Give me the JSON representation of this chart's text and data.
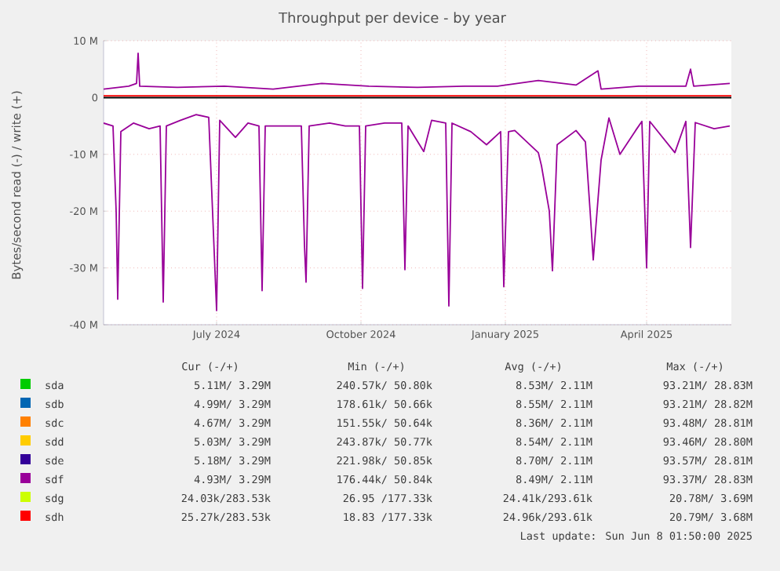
{
  "chart_data": {
    "type": "line",
    "title": "Throughput per device - by year",
    "ylabel": "Bytes/second read (-) / write (+)",
    "xlim": [
      "2024-05-04",
      "2025-06-08"
    ],
    "xticks": [
      {
        "value": "2024-07-15",
        "label": "July 2024"
      },
      {
        "value": "2024-10-15",
        "label": "October 2024"
      },
      {
        "value": "2025-01-15",
        "label": "January 2025"
      },
      {
        "value": "2025-04-15",
        "label": "April 2025"
      }
    ],
    "ylim": [
      -40,
      10
    ],
    "yticks": [
      {
        "value": -40,
        "label": "-40 M"
      },
      {
        "value": -30,
        "label": "-30 M"
      },
      {
        "value": -20,
        "label": "-20 M"
      },
      {
        "value": -10,
        "label": "-10 M"
      },
      0,
      {
        "value": 10,
        "label": "10 M"
      }
    ],
    "grid": true,
    "legend": "bottom",
    "ref_lines": [
      {
        "axis": "y",
        "value": 0,
        "color": "#000000"
      }
    ],
    "series": [
      {
        "name": "sda",
        "color": "#00cc00"
      },
      {
        "name": "sdb",
        "color": "#0066b3"
      },
      {
        "name": "sdc",
        "color": "#ff8000"
      },
      {
        "name": "sdd",
        "color": "#ffcc00"
      },
      {
        "name": "sde",
        "color": "#330099"
      },
      {
        "name": "sdf",
        "color": "#990099",
        "x": [
          "2024-05-04",
          "2024-05-10",
          "2024-05-12",
          "2024-05-13",
          "2024-05-15",
          "2024-05-23",
          "2024-06-02",
          "2024-06-09",
          "2024-06-11",
          "2024-06-13",
          "2024-06-22",
          "2024-07-02",
          "2024-07-10",
          "2024-07-15",
          "2024-07-17",
          "2024-07-27",
          "2024-08-04",
          "2024-08-11",
          "2024-08-13",
          "2024-08-15",
          "2024-08-26",
          "2024-09-07",
          "2024-09-09",
          "2024-09-10",
          "2024-09-12",
          "2024-09-25",
          "2024-10-05",
          "2024-10-14",
          "2024-10-16",
          "2024-10-18",
          "2024-10-30",
          "2024-11-10",
          "2024-11-12",
          "2024-11-14",
          "2024-11-24",
          "2024-11-29",
          "2024-12-08",
          "2024-12-10",
          "2024-12-12",
          "2024-12-24",
          "2025-01-03",
          "2025-01-12",
          "2025-01-14",
          "2025-01-17",
          "2025-01-21",
          "2025-02-05",
          "2025-02-07",
          "2025-02-12",
          "2025-02-14",
          "2025-02-17",
          "2025-03-01",
          "2025-03-07",
          "2025-03-10",
          "2025-03-12",
          "2025-03-17",
          "2025-03-22",
          "2025-03-29",
          "2025-04-08",
          "2025-04-12",
          "2025-04-15",
          "2025-04-17",
          "2025-05-03",
          "2025-05-10",
          "2025-05-13",
          "2025-05-16",
          "2025-05-28",
          "2025-06-07"
        ],
        "values": [
          -4.5,
          -5,
          -20,
          -35.5,
          -6,
          -4.5,
          -5.5,
          -5,
          -36,
          -5,
          -4,
          -3,
          -3.5,
          -37.5,
          -4,
          -7,
          -4.5,
          -5,
          -34,
          -5,
          -5,
          -5,
          -26,
          -32.5,
          -5,
          -4.5,
          -5,
          -5,
          -33.6,
          -5,
          -4.5,
          -4.5,
          -30.3,
          -5,
          -9.5,
          -4,
          -4.5,
          -36.7,
          -4.5,
          -6,
          -8.3,
          -6,
          -33.3,
          -6,
          -5.8,
          -9.7,
          -12,
          -20,
          -30.5,
          -8.3,
          -5.8,
          -7.8,
          -20,
          -28.6,
          -11,
          -3.6,
          -10,
          -5.8,
          -4.2,
          -30,
          -4.2,
          -9.7,
          -4.2,
          -26.4,
          -4.4,
          -5.5,
          -5
        ]
      },
      {
        "color": "#990099",
        "x": [
          "2024-05-04",
          "2024-05-20",
          "2024-05-25",
          "2024-05-26",
          "2024-05-27",
          "2024-06-20",
          "2024-07-20",
          "2024-08-20",
          "2024-09-20",
          "2024-10-20",
          "2024-11-20",
          "2024-12-20",
          "2025-01-10",
          "2025-02-05",
          "2025-03-01",
          "2025-03-15",
          "2025-03-17",
          "2025-04-10",
          "2025-05-10",
          "2025-05-13",
          "2025-05-15",
          "2025-06-07"
        ],
        "values": [
          1.5,
          2,
          2.5,
          7.8,
          2,
          1.8,
          2,
          1.5,
          2.5,
          2,
          1.8,
          2,
          2,
          3,
          2.2,
          4.7,
          1.5,
          2,
          2,
          5,
          2,
          2.5
        ]
      },
      {
        "name": "sdg",
        "color": "#ccff00"
      },
      {
        "name": "sdh",
        "color": "#ff0000",
        "x": [
          "2024-05-04",
          "2025-06-08"
        ],
        "values": [
          0.3,
          0.3
        ]
      }
    ],
    "annotations": [
      "Cur (-/+)",
      "Min (-/+)",
      "Avg (-/+)",
      "Max (-/+)",
      "5.11M/ 3.29M",
      "240.57k/ 50.80k",
      "8.53M/ 2.11M",
      "93.21M/ 28.83M",
      "4.99M/ 3.29M",
      "178.61k/ 50.66k",
      "8.55M/ 2.11M",
      "93.21M/ 28.82M",
      "4.67M/ 3.29M",
      "151.55k/ 50.64k",
      "8.36M/ 2.11M",
      "93.48M/ 28.81M",
      "5.03M/ 3.29M",
      "243.87k/ 50.77k",
      "8.54M/ 2.11M",
      "93.46M/ 28.80M",
      "5.18M/ 3.29M",
      "221.98k/ 50.85k",
      "8.70M/ 2.11M",
      "93.57M/ 28.81M",
      "4.93M/ 3.29M",
      "176.44k/ 50.84k",
      "8.49M/ 2.11M",
      "93.37M/ 28.83M",
      "24.03k/283.53k",
      "26.95 /177.33k",
      "24.41k/293.61k",
      "20.78M/ 3.69M",
      "25.27k/283.53k",
      "18.83 /177.33k",
      "24.96k/293.61k",
      "20.79M/ 3.68M",
      "Last update: Sun Jun 8 01:50:00 2025"
    ]
  }
}
